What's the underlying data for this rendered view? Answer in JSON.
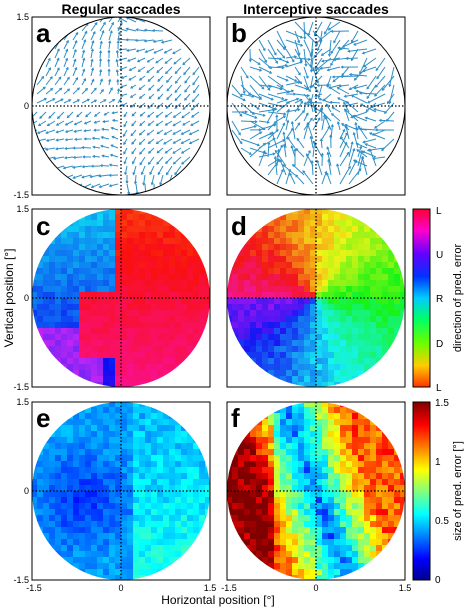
{
  "column_titles": [
    "Regular saccades",
    "Interceptive saccades"
  ],
  "panel_labels": [
    "a",
    "b",
    "c",
    "d",
    "e",
    "f"
  ],
  "axis": {
    "xlabel": "Horizontal position [°]",
    "ylabel": "Vertical position [°]",
    "tick_left": [
      "1.5",
      "0",
      "-1.5"
    ],
    "tick_bottom_left": [
      "-1.5",
      "0",
      "1.5"
    ],
    "tick_bottom_right": [
      "-1.5",
      "0",
      "1.5"
    ]
  },
  "colorbar_direction": {
    "label": "direction of pred. error",
    "ticks": [
      "L",
      "U",
      "R",
      "D",
      "L"
    ]
  },
  "colorbar_size": {
    "label": "size of pred. error [°]",
    "ticks": [
      "1.5",
      "1",
      "0.5",
      "0"
    ],
    "range": [
      0,
      1.5
    ]
  },
  "colors": {
    "arrow": "#2f8fc6",
    "frame": "#000000",
    "background": "#ffffff"
  },
  "chart_data": [
    {
      "panel": "a",
      "type": "quiver",
      "description": "prediction error vectors, regular saccades",
      "xlim": [
        -1.5,
        1.5
      ],
      "ylim": [
        -1.5,
        1.5
      ]
    },
    {
      "panel": "b",
      "type": "quiver",
      "description": "prediction error vectors, interceptive saccades",
      "xlim": [
        -1.5,
        1.5
      ],
      "ylim": [
        -1.5,
        1.5
      ]
    },
    {
      "panel": "c",
      "type": "heatmap",
      "variable": "direction",
      "xlim": [
        -1.5,
        1.5
      ],
      "ylim": [
        -1.5,
        1.5
      ]
    },
    {
      "panel": "d",
      "type": "heatmap",
      "variable": "direction",
      "xlim": [
        -1.5,
        1.5
      ],
      "ylim": [
        -1.5,
        1.5
      ]
    },
    {
      "panel": "e",
      "type": "heatmap",
      "variable": "size",
      "xlim": [
        -1.5,
        1.5
      ],
      "ylim": [
        -1.5,
        1.5
      ],
      "zlim": [
        0,
        1.5
      ]
    },
    {
      "panel": "f",
      "type": "heatmap",
      "variable": "size",
      "xlim": [
        -1.5,
        1.5
      ],
      "ylim": [
        -1.5,
        1.5
      ],
      "zlim": [
        0,
        1.5
      ]
    }
  ]
}
